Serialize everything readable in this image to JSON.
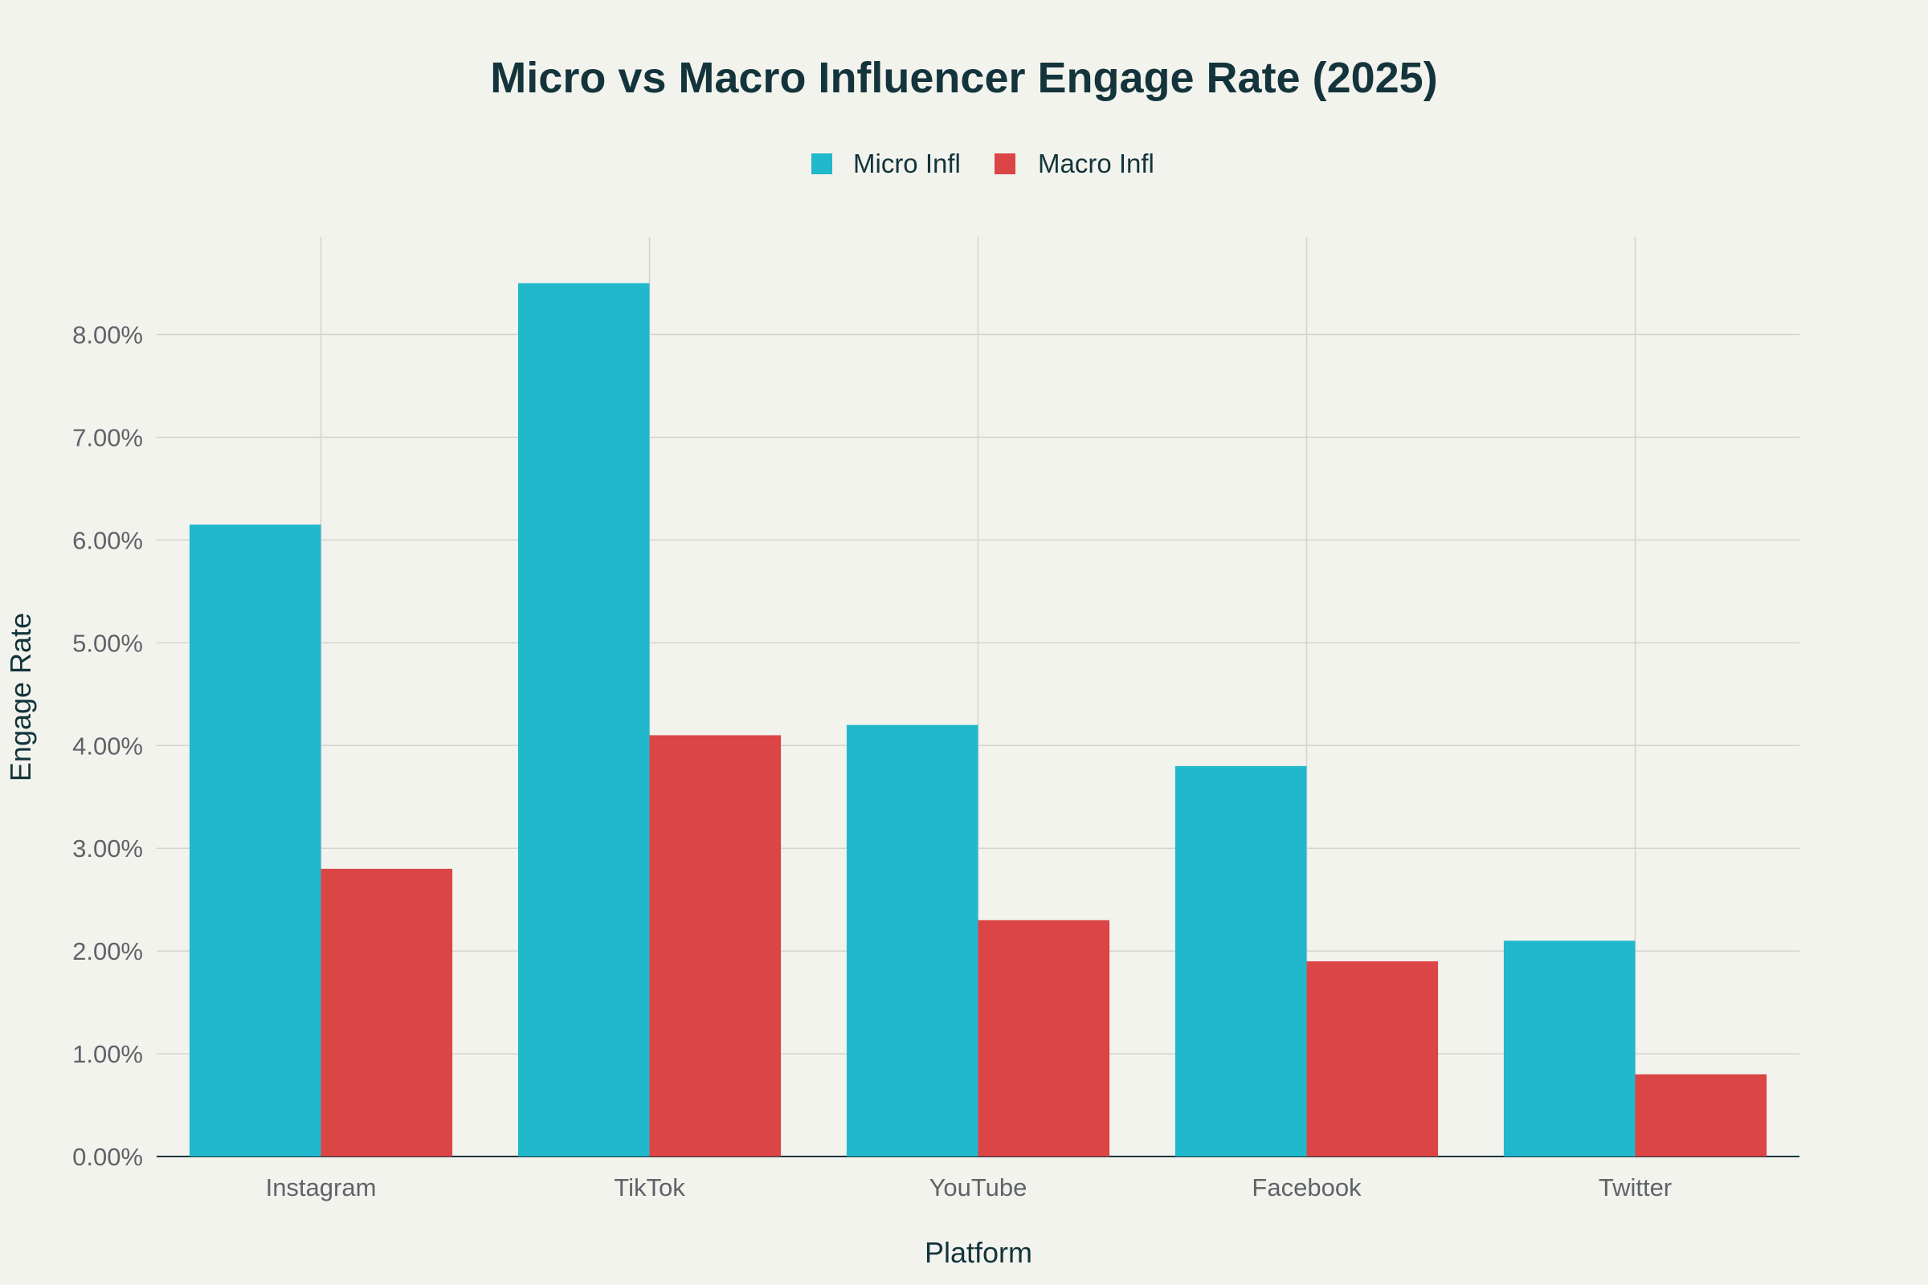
{
  "chart_data": {
    "type": "bar",
    "title": "Micro vs Macro Influencer Engage Rate (2025)",
    "xlabel": "Platform",
    "ylabel": "Engage Rate",
    "categories": [
      "Instagram",
      "TikTok",
      "YouTube",
      "Facebook",
      "Twitter"
    ],
    "series": [
      {
        "name": "Micro Infl",
        "color": "#21b8cc",
        "values": [
          6.15,
          8.5,
          4.2,
          3.8,
          2.1
        ]
      },
      {
        "name": "Macro Infl",
        "color": "#db4545",
        "values": [
          2.8,
          4.1,
          2.3,
          1.9,
          0.8
        ]
      }
    ],
    "yticks": [
      "0.00%",
      "1.00%",
      "2.00%",
      "3.00%",
      "4.00%",
      "5.00%",
      "6.00%",
      "7.00%",
      "8.00%"
    ],
    "ylim": [
      0,
      8.95
    ],
    "legend_position": "top-center",
    "grid": true
  }
}
